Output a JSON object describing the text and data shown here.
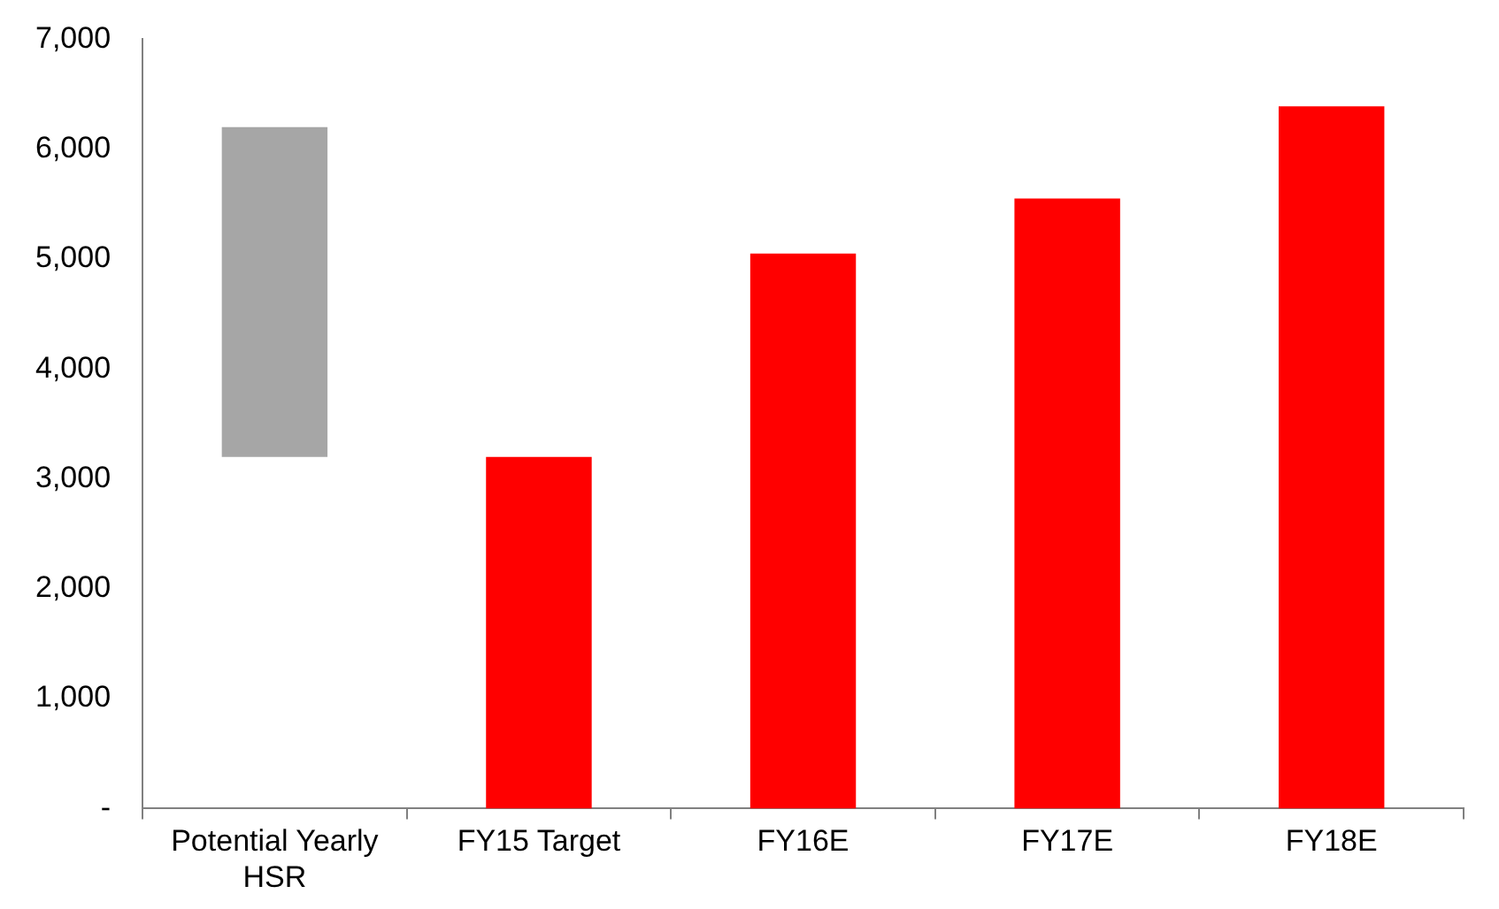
{
  "chart_data": {
    "type": "bar",
    "categories": [
      "Potential Yearly HSR",
      "FY15 Target",
      "FY16E",
      "FY17E",
      "FY18E"
    ],
    "values": [
      3000,
      3200,
      5050,
      5550,
      6390
    ],
    "base": [
      3200,
      0,
      0,
      0,
      0
    ],
    "colors": [
      "#a6a6a6",
      "#ff0000",
      "#ff0000",
      "#ff0000",
      "#ff0000"
    ],
    "ylim": [
      0,
      7000
    ],
    "yticks": [
      {
        "value": 0,
        "label": "-"
      },
      {
        "value": 1000,
        "label": "1,000"
      },
      {
        "value": 2000,
        "label": "2,000"
      },
      {
        "value": 3000,
        "label": "3,000"
      },
      {
        "value": 4000,
        "label": "4,000"
      },
      {
        "value": 5000,
        "label": "5,000"
      },
      {
        "value": 6000,
        "label": "6,000"
      },
      {
        "value": 7000,
        "label": "7,000"
      }
    ],
    "grid": false,
    "legend": false
  }
}
